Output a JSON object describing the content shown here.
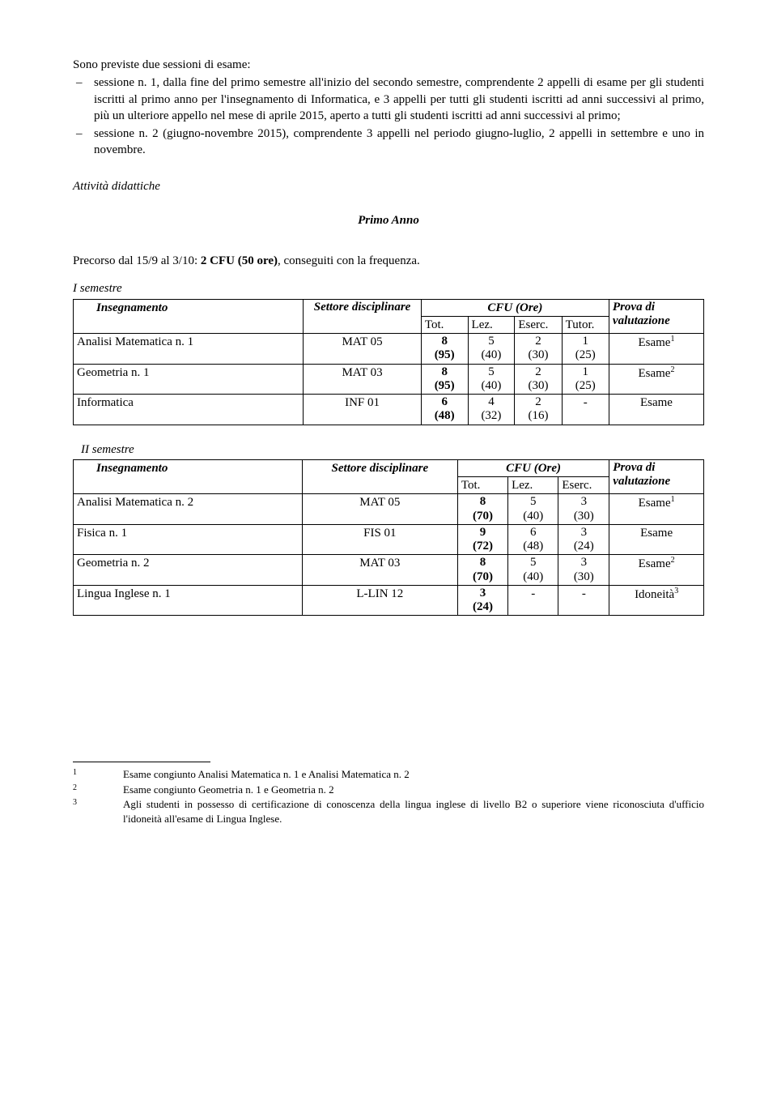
{
  "intro": "Sono previste due sessioni di esame:",
  "bullets": [
    "sessione n. 1, dalla fine del primo semestre all'inizio del secondo semestre, comprendente 2 appelli di esame per gli studenti iscritti al primo anno per l'insegnamento di Informatica, e 3 appelli per tutti gli studenti iscritti ad anni successivi al primo, più un ulteriore appello nel mese di aprile 2015, aperto a tutti gli studenti iscritti ad anni successivi al primo;",
    "sessione n. 2 (giugno-novembre 2015), comprendente 3 appelli nel periodo giugno-luglio, 2 appelli in settembre e uno in novembre."
  ],
  "attivita": "Attività didattiche",
  "primo_anno": "Primo Anno",
  "precorso_pre": "Precorso dal 15/9 al 3/10: ",
  "precorso_bold": "2 CFU (50 ore)",
  "precorso_post": ", conseguiti con la frequenza.",
  "i_sem": "I semestre",
  "ii_sem": "II semestre",
  "hdr": {
    "insegnamento": "Insegnamento",
    "settore": "Settore disciplinare",
    "settore_one": "Settore disciplinare",
    "cfu": "CFU (Ore)",
    "prova": "Prova di valutazione",
    "tot": "Tot.",
    "lez": "Lez.",
    "eserc": "Eserc.",
    "tutor": "Tutor."
  },
  "t1": [
    {
      "name": "Analisi Matematica n. 1",
      "set": "MAT 05",
      "tot": "8",
      "tot2": "(95)",
      "lez": "5",
      "lez2": "(40)",
      "es": "2",
      "es2": "(30)",
      "tu": "1",
      "tu2": "(25)",
      "prova": "Esame",
      "sup": "1"
    },
    {
      "name": "Geometria n. 1",
      "set": "MAT 03",
      "tot": "8",
      "tot2": "(95)",
      "lez": "5",
      "lez2": "(40)",
      "es": "2",
      "es2": "(30)",
      "tu": "1",
      "tu2": "(25)",
      "prova": "Esame",
      "sup": "2"
    },
    {
      "name": "Informatica",
      "set": "INF 01",
      "tot": "6",
      "tot2": "(48)",
      "lez": "4",
      "lez2": "(32)",
      "es": "2",
      "es2": "(16)",
      "tu": "-",
      "tu2": "",
      "prova": "Esame",
      "sup": ""
    }
  ],
  "t2": [
    {
      "name": "Analisi Matematica n. 2",
      "set": "MAT 05",
      "tot": "8",
      "tot2": "(70)",
      "lez": "5",
      "lez2": "(40)",
      "es": "3",
      "es2": "(30)",
      "prova": "Esame",
      "sup": "1"
    },
    {
      "name": "Fisica n. 1",
      "set": "FIS 01",
      "tot": "9",
      "tot2": "(72)",
      "lez": "6",
      "lez2": "(48)",
      "es": "3",
      "es2": "(24)",
      "prova": "Esame",
      "sup": ""
    },
    {
      "name": "Geometria n. 2",
      "set": "MAT 03",
      "tot": "8",
      "tot2": "(70)",
      "lez": "5",
      "lez2": "(40)",
      "es": "3",
      "es2": "(30)",
      "prova": "Esame",
      "sup": "2"
    },
    {
      "name": "Lingua Inglese n. 1",
      "set": "L-LIN 12",
      "tot": "3",
      "tot2": "(24)",
      "lez": "-",
      "lez2": "",
      "es": "-",
      "es2": "",
      "prova": "Idoneità",
      "sup": "3"
    }
  ],
  "footnotes": [
    {
      "n": "1",
      "t": "Esame congiunto Analisi Matematica n. 1 e  Analisi Matematica n. 2"
    },
    {
      "n": "2",
      "t": "Esame congiunto Geometria n. 1 e  Geometria n. 2"
    },
    {
      "n": "3",
      "t": "Agli studenti in possesso di certificazione di conoscenza della lingua inglese di livello B2 o superiore viene riconosciuta d'ufficio l'idoneità all'esame di Lingua Inglese."
    }
  ]
}
